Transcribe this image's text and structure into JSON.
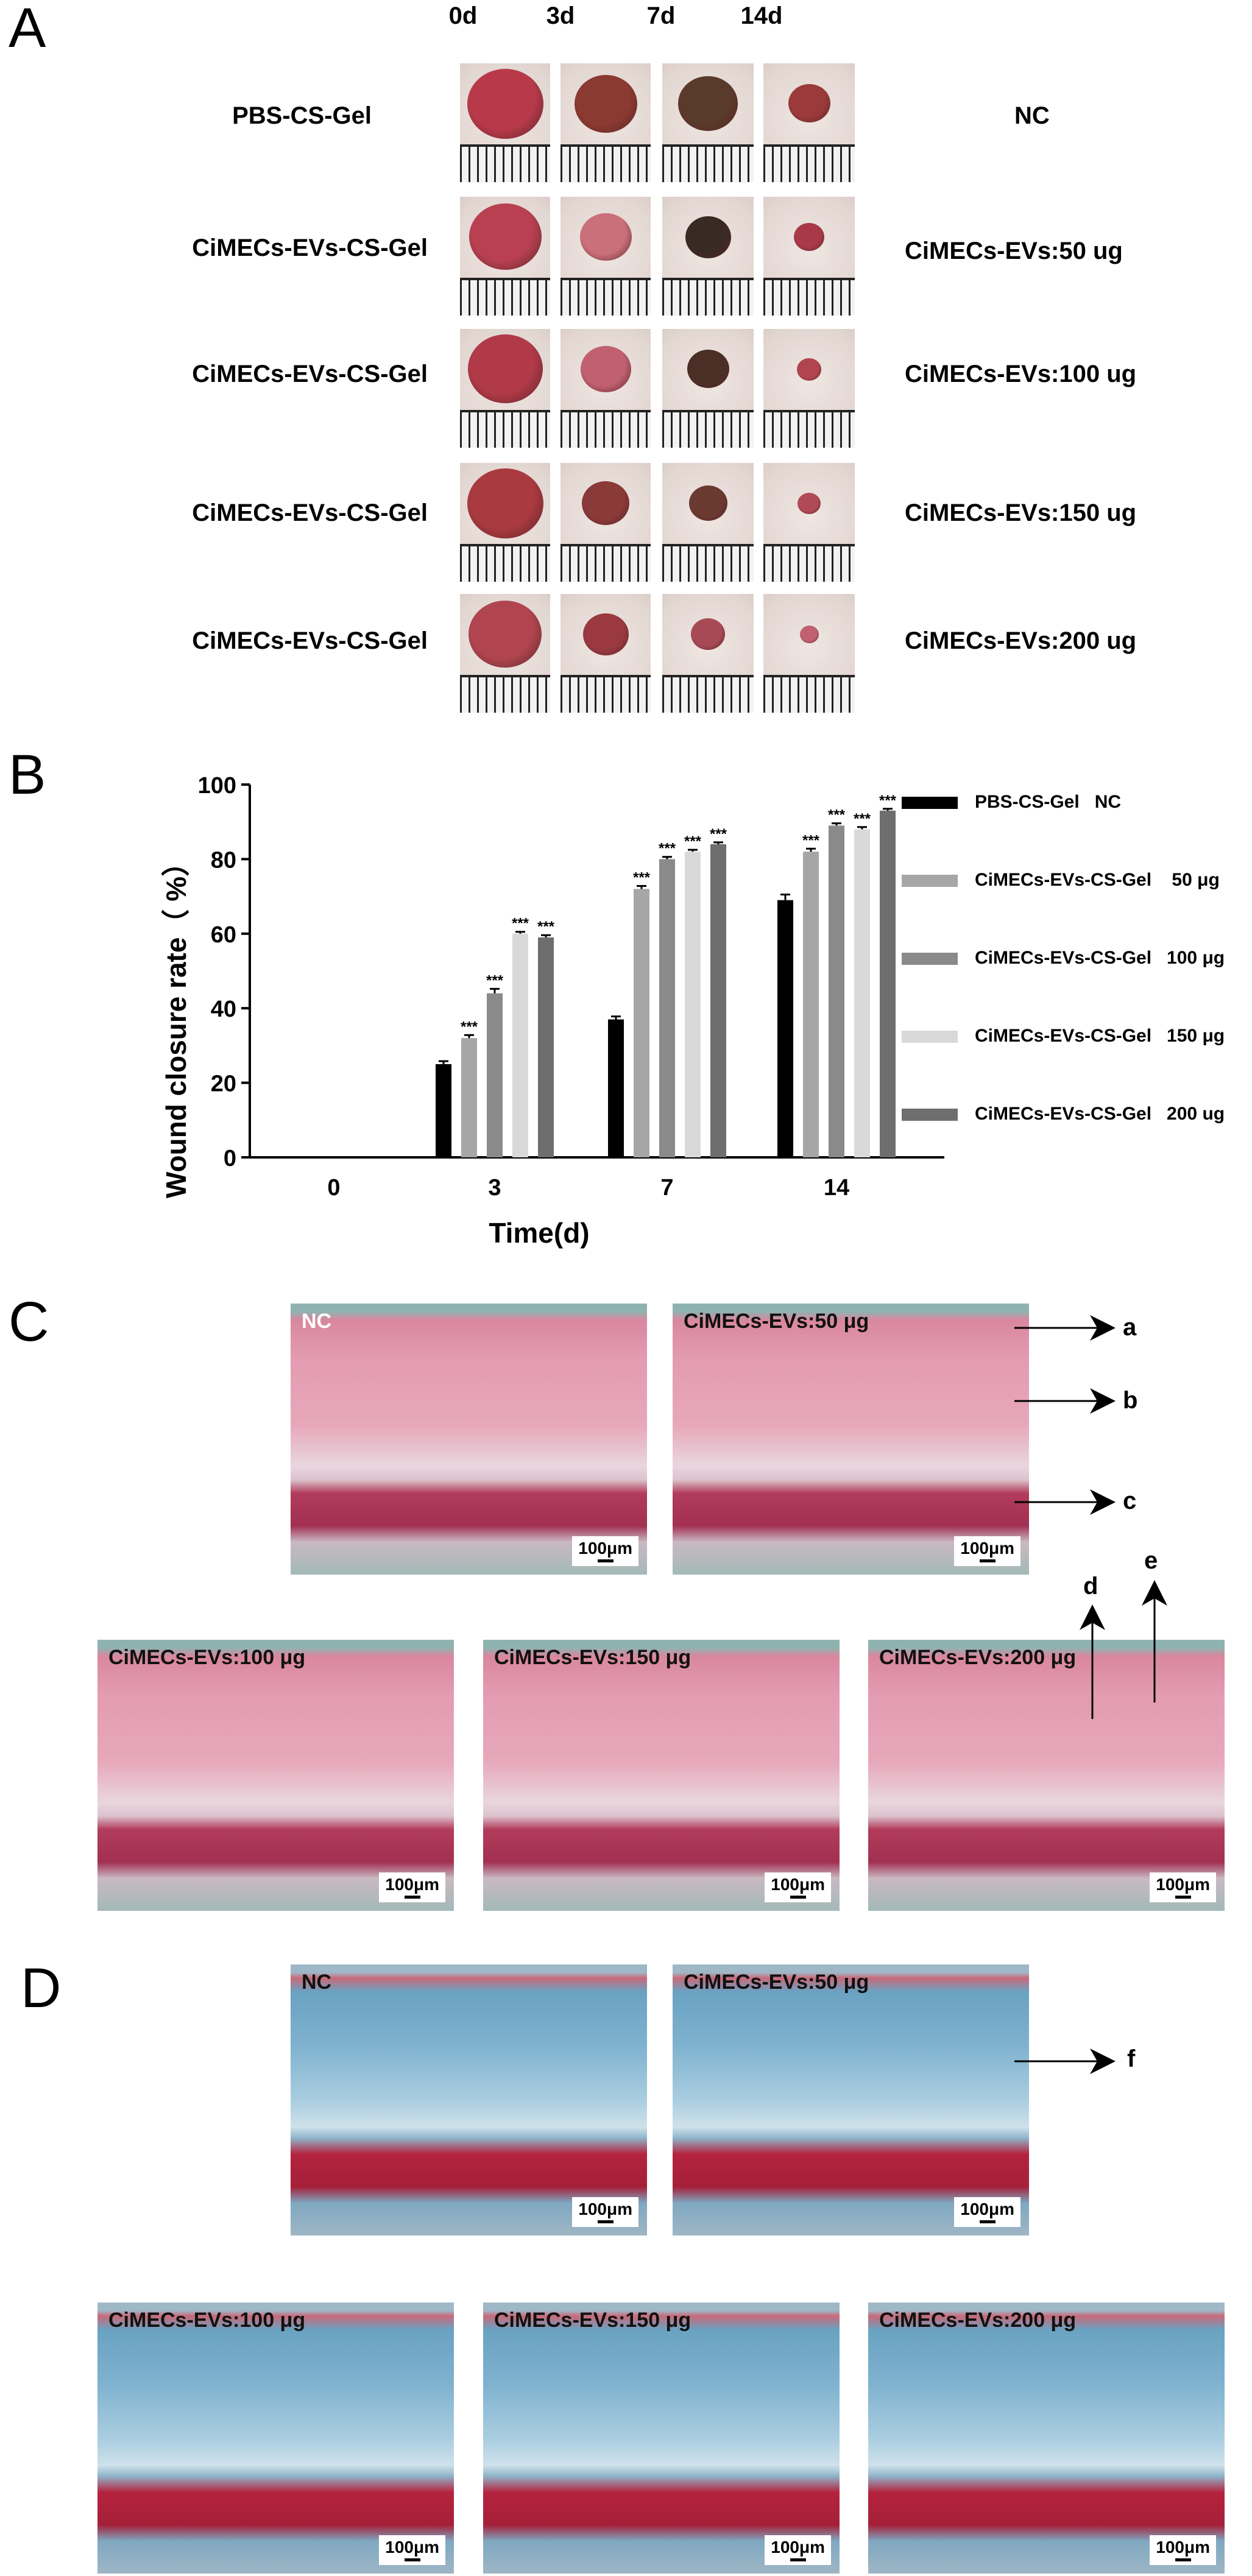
{
  "panel_letters": {
    "a": "A",
    "b": "B",
    "c": "C",
    "d": "D"
  },
  "panel_a": {
    "days": [
      "0d",
      "3d",
      "7d",
      "14d"
    ],
    "rows": [
      {
        "left": "PBS-CS-Gel",
        "right": "NC"
      },
      {
        "left": "CiMECs-EVs-CS-Gel",
        "right": "CiMECs-EVs:50 ug"
      },
      {
        "left": "CiMECs-EVs-CS-Gel",
        "right": "CiMECs-EVs:100 ug"
      },
      {
        "left": "CiMECs-EVs-CS-Gel",
        "right": "CiMECs-EVs:150 ug"
      },
      {
        "left": "CiMECs-EVs-CS-Gel",
        "right": "CiMECs-EVs:200 ug"
      }
    ],
    "wound_relative_size": [
      [
        1.0,
        0.82,
        0.78,
        0.55
      ],
      [
        0.95,
        0.68,
        0.6,
        0.4
      ],
      [
        0.98,
        0.66,
        0.55,
        0.32
      ],
      [
        1.0,
        0.62,
        0.5,
        0.3
      ],
      [
        0.96,
        0.6,
        0.45,
        0.25
      ]
    ]
  },
  "chart_data": {
    "type": "bar",
    "xlabel": "Time(d)",
    "ylabel": "Wound closure rate（ %）",
    "ylim": [
      0,
      100
    ],
    "yticks": [
      0,
      20,
      40,
      60,
      80,
      100
    ],
    "categories": [
      "0",
      "3",
      "7",
      "14"
    ],
    "series": [
      {
        "name": "PBS-CS-Gel   NC",
        "color": "#000000",
        "values": [
          0,
          25,
          37,
          69
        ],
        "errors": [
          0,
          0.8,
          0.8,
          1.5
        ],
        "sig": [
          "",
          "",
          "",
          ""
        ]
      },
      {
        "name": "CiMECs-EVs-CS-Gel    50 μg",
        "color": "#a6a6a6",
        "values": [
          0,
          32,
          72,
          82
        ],
        "errors": [
          0,
          0.8,
          0.8,
          0.8
        ],
        "sig": [
          "",
          "***",
          "***",
          "***"
        ]
      },
      {
        "name": "CiMECs-EVs-CS-Gel   100 μg",
        "color": "#8a8a8a",
        "values": [
          0,
          44,
          80,
          89
        ],
        "errors": [
          0,
          1.2,
          0.6,
          0.6
        ],
        "sig": [
          "",
          "***",
          "***",
          "***"
        ]
      },
      {
        "name": "CiMECs-EVs-CS-Gel   150 μg",
        "color": "#d9d9d9",
        "values": [
          0,
          60,
          82,
          88
        ],
        "errors": [
          0,
          0.5,
          0.5,
          0.6
        ],
        "sig": [
          "",
          "***",
          "***",
          "***"
        ]
      },
      {
        "name": "CiMECs-EVs-CS-Gel   200 ug",
        "color": "#6e6e6e",
        "values": [
          0,
          59,
          84,
          93
        ],
        "errors": [
          0,
          0.6,
          0.5,
          0.5
        ],
        "sig": [
          "",
          "***",
          "***",
          "***"
        ]
      }
    ],
    "legend_position": "right"
  },
  "panel_c": {
    "images": [
      "NC",
      "CiMECs-EVs:50 μg",
      "CiMECs-EVs:100 μg",
      "CiMECs-EVs:150 μg",
      "CiMECs-EVs:200 μg"
    ],
    "scale": "100μm",
    "annotations": [
      "a",
      "b",
      "c",
      "d",
      "e"
    ]
  },
  "panel_d": {
    "images": [
      "NC",
      "CiMECs-EVs:50 μg",
      "CiMECs-EVs:100 μg",
      "CiMECs-EVs:150 μg",
      "CiMECs-EVs:200 μg"
    ],
    "scale": "100μm",
    "annotations": [
      "f"
    ]
  }
}
